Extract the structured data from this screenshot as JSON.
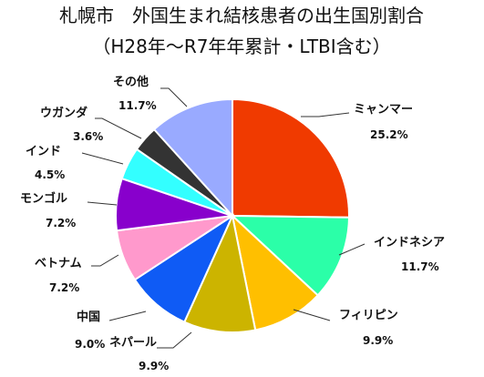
{
  "chart_data": {
    "type": "pie",
    "title": "札幌市　外国生まれ結核患者の出生国別割合",
    "subtitle": "（H28年〜R7年年累計・LTBI含む）",
    "slices": [
      {
        "label": "ミャンマー",
        "value": 25.2,
        "value_label": "25.2%",
        "color": "#F03A00"
      },
      {
        "label": "インドネシア",
        "value": 11.7,
        "value_label": "11.7%",
        "color": "#2BFFA8"
      },
      {
        "label": "フィリピン",
        "value": 9.9,
        "value_label": "9.9%",
        "color": "#FFBF00"
      },
      {
        "label": "ネパール",
        "value": 9.9,
        "value_label": "9.9%",
        "color": "#CCB400"
      },
      {
        "label": "中国",
        "value": 9.0,
        "value_label": "9.0%",
        "color": "#0F5BF5"
      },
      {
        "label": "ベトナム",
        "value": 7.2,
        "value_label": "7.2%",
        "color": "#FF99CC"
      },
      {
        "label": "モンゴル",
        "value": 7.2,
        "value_label": "7.2%",
        "color": "#8800CC"
      },
      {
        "label": "インド",
        "value": 4.5,
        "value_label": "4.5%",
        "color": "#33FFFF"
      },
      {
        "label": "ウガンダ",
        "value": 3.6,
        "value_label": "3.6%",
        "color": "#333333"
      },
      {
        "label": "その他",
        "value": 11.7,
        "value_label": "11.7%",
        "color": "#99AAFF"
      }
    ]
  }
}
